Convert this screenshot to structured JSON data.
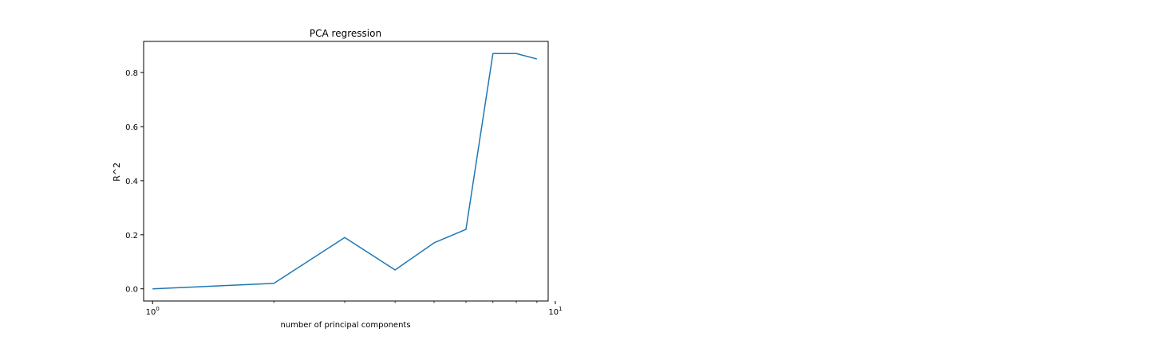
{
  "chart_data": {
    "type": "line",
    "title": "PCA regression",
    "xlabel": "number of principal components",
    "ylabel": "R^2",
    "xscale": "log",
    "xlim": [
      0.95,
      9.6
    ],
    "ylim": [
      -0.045,
      0.915
    ],
    "grid": false,
    "series": [
      {
        "color": "#1f77b4",
        "x": [
          1,
          2,
          3,
          4,
          5,
          6,
          7,
          8,
          9
        ],
        "y": [
          0.0,
          0.02,
          0.19,
          0.07,
          0.17,
          0.22,
          0.87,
          0.87,
          0.85
        ]
      }
    ],
    "yticks": [
      {
        "value": 0.0,
        "label": "0.0"
      },
      {
        "value": 0.2,
        "label": "0.2"
      },
      {
        "value": 0.4,
        "label": "0.4"
      },
      {
        "value": 0.6,
        "label": "0.6"
      },
      {
        "value": 0.8,
        "label": "0.8"
      }
    ],
    "xticks_major": [
      {
        "value": 1,
        "base": "10",
        "exp": "0"
      },
      {
        "value": 10,
        "base": "10",
        "exp": "1"
      }
    ],
    "xticks_minor": [
      2,
      3,
      4,
      5,
      6,
      7,
      8,
      9
    ]
  }
}
